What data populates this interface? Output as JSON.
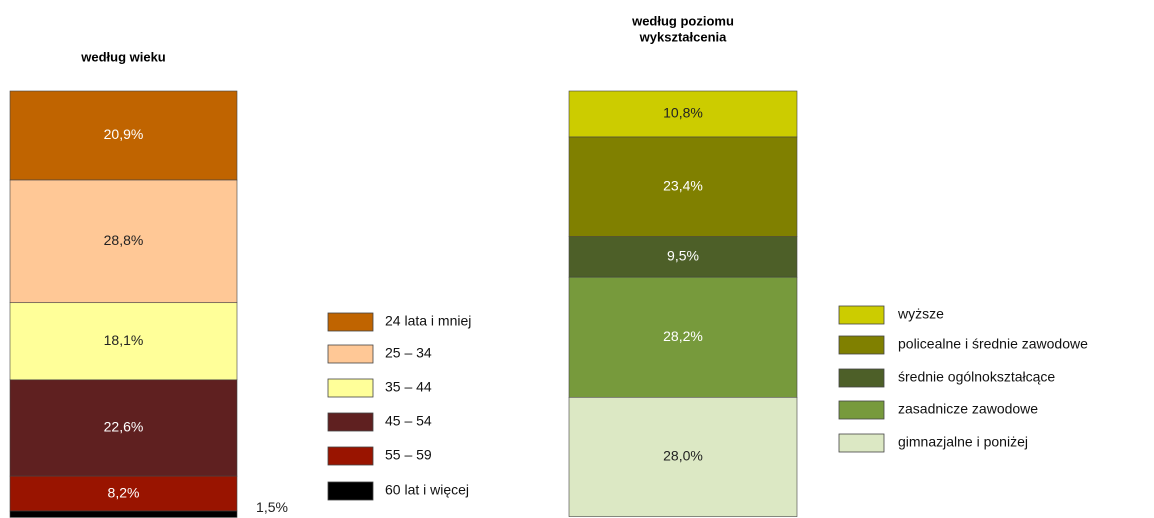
{
  "chart_data": [
    {
      "type": "stacked-bar",
      "title": [
        "według wieku"
      ],
      "series": [
        {
          "name": "24 lata i mniej",
          "color": "#c06400",
          "values": [
            20.9
          ],
          "value_labels": [
            "20,9%"
          ]
        },
        {
          "name": "25 – 34",
          "color": "#ffc896",
          "values": [
            28.8
          ],
          "value_labels": [
            "28,8%"
          ]
        },
        {
          "name": "35 – 44",
          "color": "#ffff99",
          "values": [
            18.1
          ],
          "value_labels": [
            "18,1%"
          ]
        },
        {
          "name": "45 – 54",
          "color": "#5f2020",
          "values": [
            22.6
          ],
          "value_labels": [
            "22,6%"
          ]
        },
        {
          "name": "55 – 59",
          "color": "#991400",
          "values": [
            8.2
          ],
          "value_labels": [
            "8,2%"
          ]
        },
        {
          "name": "60 lat i więcej",
          "color": "#000000",
          "values": [
            1.5
          ],
          "value_labels": [
            "1,5%"
          ]
        }
      ]
    },
    {
      "type": "stacked-bar",
      "title": [
        "według poziomu",
        "wykształcenia"
      ],
      "series": [
        {
          "name": "wyższe",
          "color": "#cccc00",
          "values": [
            10.8
          ],
          "value_labels": [
            "10,8%"
          ]
        },
        {
          "name": "policealne i średnie zawodowe",
          "color": "#808000",
          "values": [
            23.4
          ],
          "value_labels": [
            "23,4%"
          ]
        },
        {
          "name": "średnie ogólnokształcące",
          "color": "#4d5f28",
          "values": [
            9.5
          ],
          "value_labels": [
            "9,5%"
          ]
        },
        {
          "name": "zasadnicze zawodowe",
          "color": "#779a3c",
          "values": [
            28.2
          ],
          "value_labels": [
            "28,2%"
          ]
        },
        {
          "name": "gimnazjalne i poniżej",
          "color": "#dce8c4",
          "values": [
            28.0
          ],
          "value_labels": [
            "28,0%"
          ]
        }
      ]
    }
  ]
}
